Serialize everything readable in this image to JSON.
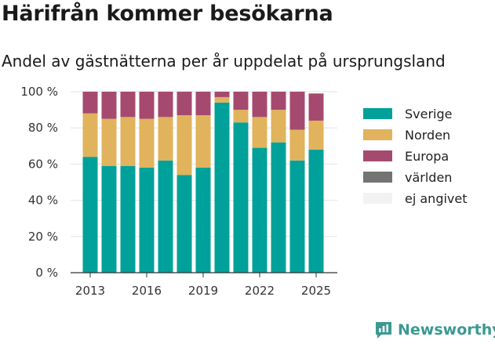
{
  "title": "Härifrån kommer besökarna",
  "subtitle": "Andel av gästnätterna per år uppdelat på ursprungsland",
  "brand": "Newsworthy",
  "chart_data": {
    "type": "bar",
    "stacked": true,
    "x": [
      2013,
      2014,
      2015,
      2016,
      2017,
      2018,
      2019,
      2020,
      2021,
      2022,
      2023,
      2024,
      2025
    ],
    "x_tick_labels": [
      "2013",
      "2016",
      "2019",
      "2022",
      "2025"
    ],
    "y_tick_labels": [
      "0 %",
      "20 %",
      "40 %",
      "60 %",
      "80 %",
      "100 %"
    ],
    "ylim": [
      0,
      100
    ],
    "grid": true,
    "legend_position": "right",
    "series": [
      {
        "name": "Sverige",
        "color": "#00a19a",
        "values": [
          64,
          59,
          59,
          58,
          62,
          54,
          58,
          94,
          83,
          69,
          72,
          62,
          68
        ]
      },
      {
        "name": "Norden",
        "color": "#e0b35c",
        "values": [
          24,
          26,
          27,
          27,
          24,
          33,
          29,
          3,
          7,
          17,
          18,
          17,
          16
        ]
      },
      {
        "name": "Europa",
        "color": "#a54a6e",
        "values": [
          12,
          15,
          14,
          15,
          14,
          13,
          13,
          3,
          10,
          14,
          10,
          21,
          15
        ]
      },
      {
        "name": "världen",
        "color": "#737373",
        "values": [
          0,
          0,
          0,
          0,
          0,
          0,
          0,
          0,
          0,
          0,
          0,
          0,
          0
        ]
      },
      {
        "name": "ej angivet",
        "color": "#f2f2f2",
        "values": [
          0,
          0,
          0,
          0,
          0,
          0,
          0,
          0,
          0,
          0,
          0,
          0,
          0
        ]
      }
    ]
  }
}
